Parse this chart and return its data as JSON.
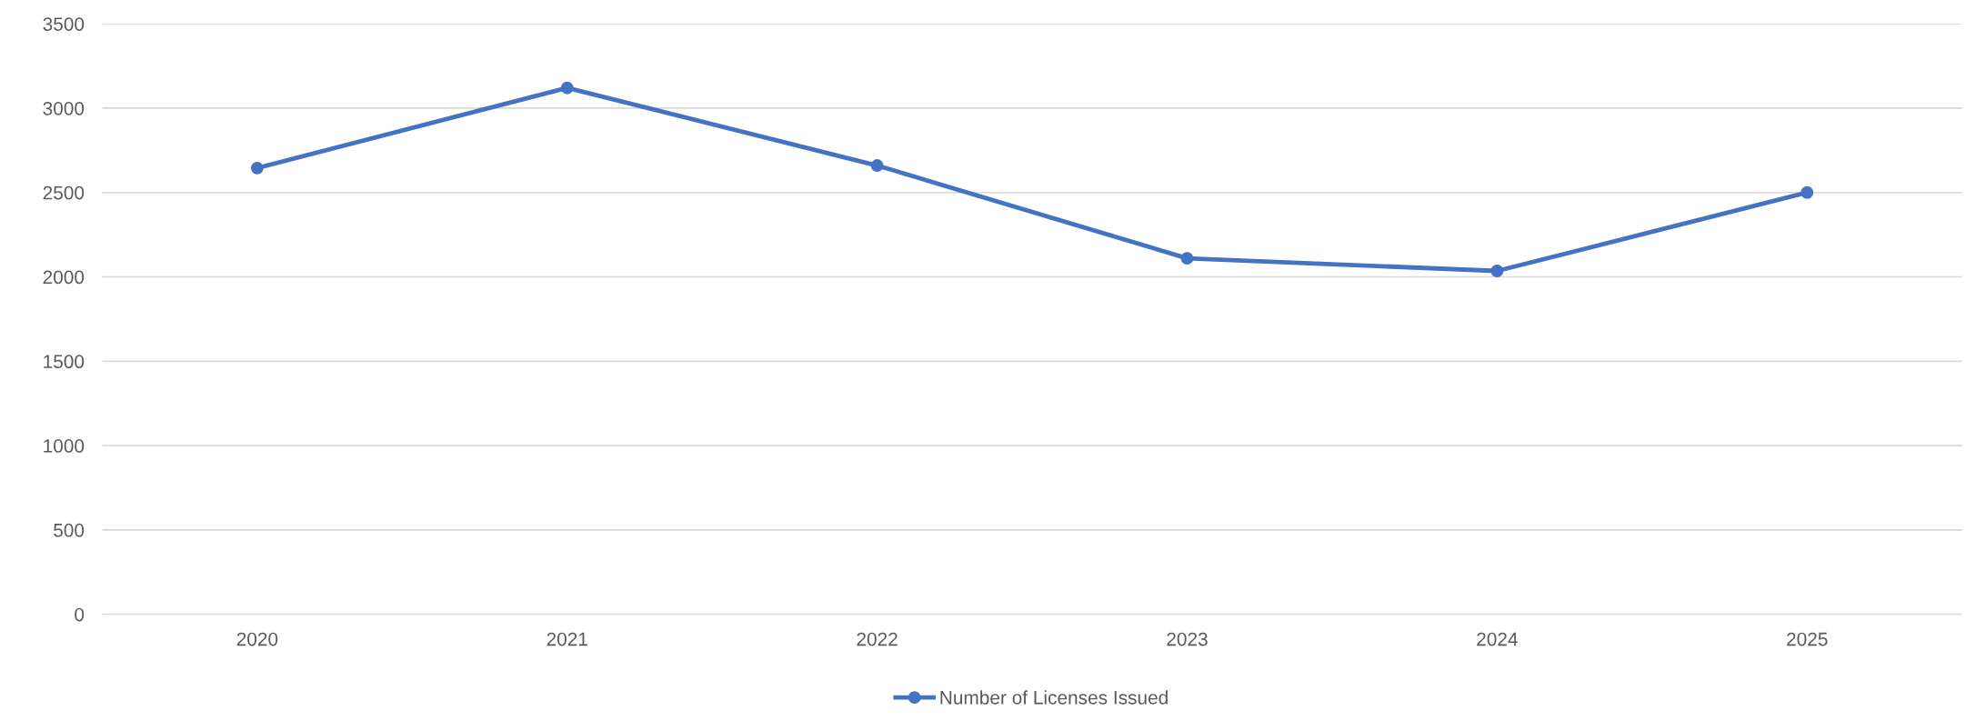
{
  "chart_data": {
    "type": "line",
    "categories": [
      "2020",
      "2021",
      "2022",
      "2023",
      "2024",
      "2025"
    ],
    "series": [
      {
        "name": "Number of Licenses Issued",
        "color": "#4472c4",
        "values": [
          2645,
          3120,
          2660,
          2110,
          2035,
          2500
        ]
      }
    ],
    "ylim": [
      0,
      3500
    ],
    "yticks": [
      0,
      500,
      1000,
      1500,
      2000,
      2500,
      3000,
      3500
    ],
    "grid": "y",
    "legend": "bottom",
    "marker": "circle",
    "line_style": "solid"
  }
}
